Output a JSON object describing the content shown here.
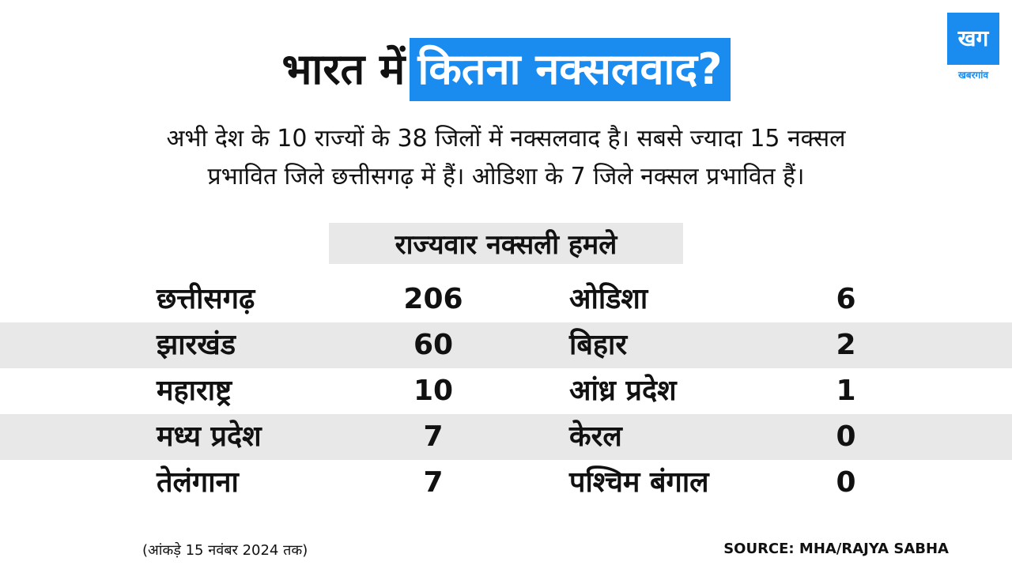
{
  "title": {
    "plain": "भारत में",
    "highlight": "कितना नक्सलवाद?"
  },
  "logo": {
    "mark": "खग",
    "name": "खबरगांव"
  },
  "description": {
    "line1": "अभी देश के 10 राज्यों के 38 जिलों में नक्सलवाद है। सबसे ज्यादा 15 नक्सल",
    "line2": "प्रभावित जिले छत्तीसगढ़ में हैं। ओडिशा के 7 जिले नक्सल प्रभावित हैं।"
  },
  "section_label": "राज्यवार नक्सली हमले",
  "rows": [
    {
      "left_state": "छत्तीसगढ़",
      "left_value": "206",
      "right_state": "ओडिशा",
      "right_value": "6"
    },
    {
      "left_state": "झारखंड",
      "left_value": "60",
      "right_state": "बिहार",
      "right_value": "2"
    },
    {
      "left_state": "महाराष्ट्र",
      "left_value": "10",
      "right_state": "आंध्र प्रदेश",
      "right_value": "1"
    },
    {
      "left_state": "मध्य प्रदेश",
      "left_value": "7",
      "right_state": "केरल",
      "right_value": "0"
    },
    {
      "left_state": "तेलंगाना",
      "left_value": "7",
      "right_state": "पश्चिम बंगाल",
      "right_value": "0"
    }
  ],
  "footnote": "(आंकड़े 15 नवंबर 2024 तक)",
  "source": "SOURCE: MHA/RAJYA SABHA",
  "colors": {
    "accent": "#1a8cf0",
    "row_shade": "#e8e8e8",
    "text": "#111111"
  }
}
